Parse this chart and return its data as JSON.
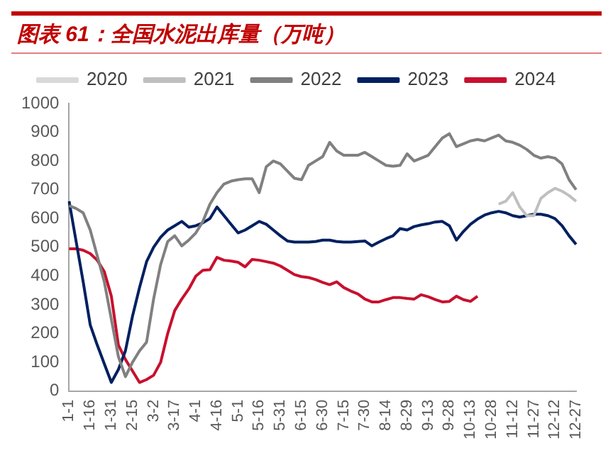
{
  "chart_data": {
    "type": "line",
    "title": "图表 61：全国水泥出库量（万吨）",
    "categories": [
      "1-1",
      null,
      null,
      "1-16",
      null,
      null,
      "1-31",
      null,
      null,
      "2-15",
      null,
      null,
      "3-2",
      null,
      null,
      "3-17",
      null,
      null,
      "4-1",
      null,
      null,
      "4-16",
      null,
      null,
      "5-1",
      null,
      null,
      "5-16",
      null,
      null,
      "5-31",
      null,
      null,
      "6-15",
      null,
      null,
      "6-30",
      null,
      null,
      "7-15",
      null,
      null,
      "7-30",
      null,
      null,
      "8-14",
      null,
      null,
      "8-29",
      null,
      null,
      "9-13",
      null,
      null,
      "9-28",
      null,
      null,
      "10-13",
      null,
      null,
      "10-28",
      null,
      null,
      "11-12",
      null,
      null,
      "11-27",
      null,
      null,
      "12-12",
      null,
      null,
      "12-27"
    ],
    "series": [
      {
        "name": "2020",
        "color": "#d9d9d9",
        "values": [
          null,
          null,
          null,
          null,
          null,
          null,
          null,
          null,
          null,
          null,
          null,
          null,
          null,
          null,
          null,
          null,
          null,
          null,
          null,
          null,
          null,
          null,
          null,
          null,
          null,
          null,
          null,
          null,
          null,
          null,
          null,
          null,
          null,
          null,
          null,
          null,
          null,
          null,
          null,
          null,
          null,
          null,
          null,
          null,
          null,
          null,
          null,
          null,
          null,
          null,
          null,
          null,
          null,
          null,
          null,
          null,
          null,
          null,
          null,
          null,
          null,
          null,
          null,
          null,
          null,
          null,
          null,
          null,
          null,
          null,
          null,
          null,
          null
        ]
      },
      {
        "name": "2021",
        "color": "#bfbfbf",
        "values": [
          null,
          null,
          null,
          null,
          null,
          null,
          null,
          null,
          null,
          null,
          null,
          null,
          null,
          null,
          null,
          null,
          null,
          null,
          null,
          null,
          null,
          null,
          null,
          null,
          null,
          null,
          null,
          null,
          null,
          null,
          null,
          null,
          null,
          null,
          null,
          null,
          null,
          null,
          null,
          null,
          null,
          null,
          null,
          null,
          null,
          null,
          null,
          null,
          null,
          null,
          null,
          null,
          null,
          null,
          null,
          null,
          null,
          null,
          null,
          null,
          null,
          650,
          660,
          690,
          640,
          610,
          610,
          670,
          690,
          705,
          695,
          680,
          660
        ]
      },
      {
        "name": "2022",
        "color": "#808080",
        "values": [
          645,
          635,
          620,
          560,
          470,
          380,
          250,
          120,
          50,
          100,
          140,
          170,
          320,
          440,
          520,
          540,
          505,
          525,
          550,
          590,
          650,
          690,
          720,
          730,
          735,
          738,
          738,
          690,
          780,
          800,
          790,
          765,
          740,
          735,
          785,
          800,
          815,
          865,
          835,
          820,
          820,
          820,
          830,
          815,
          800,
          785,
          782,
          785,
          825,
          800,
          810,
          820,
          850,
          880,
          895,
          850,
          860,
          870,
          875,
          870,
          880,
          890,
          870,
          865,
          855,
          840,
          820,
          810,
          815,
          810,
          790,
          735,
          700
        ]
      },
      {
        "name": "2023",
        "color": "#002060",
        "values": [
          660,
          520,
          380,
          230,
          160,
          95,
          30,
          75,
          140,
          260,
          360,
          450,
          500,
          535,
          560,
          575,
          590,
          570,
          575,
          585,
          600,
          640,
          610,
          580,
          550,
          560,
          575,
          590,
          580,
          560,
          540,
          522,
          518,
          518,
          518,
          520,
          525,
          525,
          520,
          518,
          518,
          520,
          522,
          505,
          518,
          530,
          540,
          565,
          560,
          572,
          578,
          582,
          588,
          590,
          575,
          525,
          555,
          580,
          598,
          612,
          620,
          625,
          620,
          610,
          605,
          610,
          615,
          615,
          610,
          600,
          575,
          540,
          510
        ]
      },
      {
        "name": "2024",
        "color": "#c8102e",
        "values": [
          495,
          495,
          490,
          478,
          455,
          415,
          330,
          160,
          110,
          70,
          30,
          40,
          55,
          100,
          200,
          280,
          320,
          355,
          400,
          420,
          422,
          465,
          455,
          452,
          448,
          432,
          458,
          455,
          450,
          445,
          435,
          420,
          405,
          398,
          395,
          388,
          378,
          370,
          380,
          360,
          348,
          338,
          320,
          310,
          310,
          318,
          325,
          325,
          322,
          320,
          335,
          328,
          318,
          310,
          312,
          330,
          318,
          312,
          330,
          null,
          null,
          null,
          null,
          null,
          null,
          null,
          null,
          null,
          null,
          null,
          null,
          null,
          null
        ]
      }
    ],
    "ylim": [
      0,
      1000
    ],
    "yticks": [
      0,
      100,
      200,
      300,
      400,
      500,
      600,
      700,
      800,
      900,
      1000
    ],
    "grid": false,
    "legend": "top",
    "marker": "none",
    "line_style": "solid"
  }
}
